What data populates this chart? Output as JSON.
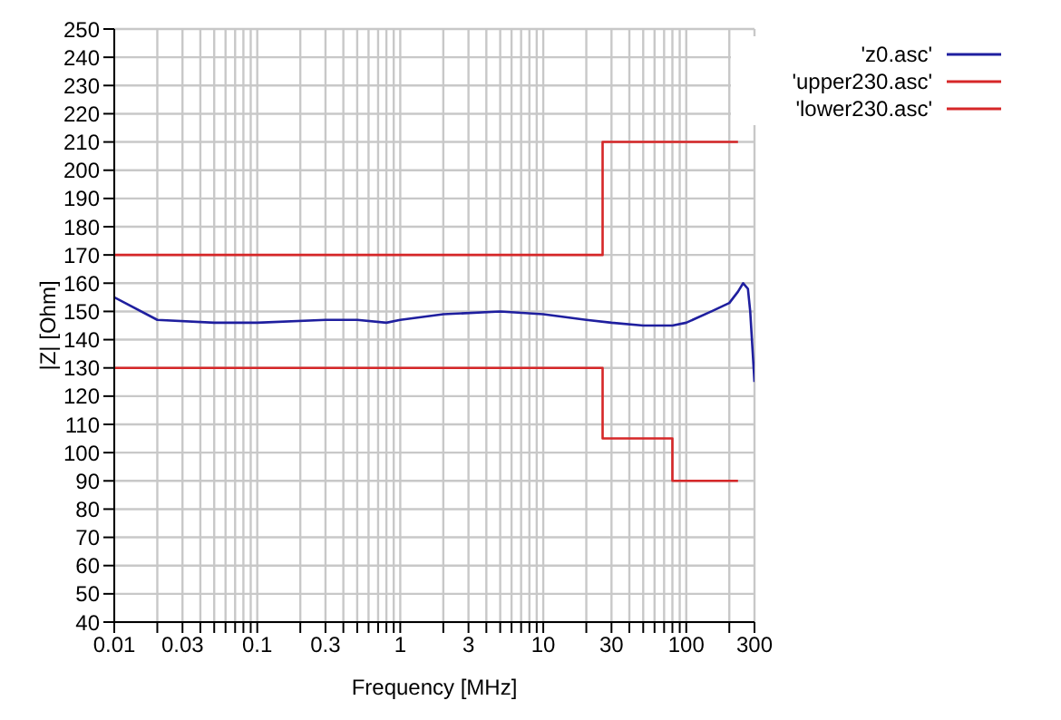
{
  "chart_data": {
    "type": "line",
    "xlabel": "Frequency [MHz]",
    "ylabel": "|Z| [Ohm]",
    "log": "x",
    "xlim": [
      0.01,
      300
    ],
    "xticks": [
      0.01,
      {
        "value": 0.02,
        "label": null
      },
      0.03,
      {
        "value": 0.04,
        "label": null
      },
      {
        "value": 0.05,
        "label": null
      },
      {
        "value": 0.06,
        "label": null
      },
      {
        "value": 0.07,
        "label": null
      },
      {
        "value": 0.08,
        "label": null
      },
      {
        "value": 0.09,
        "label": null
      },
      0.1,
      {
        "value": 0.2,
        "label": null
      },
      0.3,
      {
        "value": 0.4,
        "label": null
      },
      {
        "value": 0.5,
        "label": null
      },
      {
        "value": 0.6,
        "label": null
      },
      {
        "value": 0.7,
        "label": null
      },
      {
        "value": 0.8,
        "label": null
      },
      {
        "value": 0.9,
        "label": null
      },
      1,
      {
        "value": 2,
        "label": null
      },
      3,
      {
        "value": 4,
        "label": null
      },
      {
        "value": 5,
        "label": null
      },
      {
        "value": 6,
        "label": null
      },
      {
        "value": 7,
        "label": null
      },
      {
        "value": 8,
        "label": null
      },
      {
        "value": 9,
        "label": null
      },
      10,
      {
        "value": 20,
        "label": null
      },
      30,
      {
        "value": 40,
        "label": null
      },
      {
        "value": 50,
        "label": null
      },
      {
        "value": 60,
        "label": null
      },
      {
        "value": 70,
        "label": null
      },
      {
        "value": 80,
        "label": null
      },
      {
        "value": 90,
        "label": null
      },
      100,
      {
        "value": 200,
        "label": null
      },
      300
    ],
    "ylim": [
      40,
      250
    ],
    "yticks": [
      40,
      50,
      60,
      70,
      80,
      90,
      100,
      110,
      120,
      130,
      140,
      150,
      160,
      170,
      180,
      190,
      200,
      210,
      220,
      230,
      240,
      250
    ],
    "grid": true,
    "legend": "top right",
    "marker": "none",
    "line_style": "solid",
    "series": [
      {
        "name": "'z0.asc'",
        "color": "#1f1f9f",
        "x": [
          0.01,
          0.02,
          0.05,
          0.1,
          0.3,
          0.5,
          0.8,
          1,
          2,
          5,
          10,
          20,
          30,
          50,
          80,
          100,
          150,
          200,
          230,
          250,
          270,
          280,
          300
        ],
        "values": [
          155,
          147,
          146,
          146,
          147,
          147,
          146,
          147,
          149,
          150,
          149,
          147,
          146,
          145,
          145,
          146,
          150,
          153,
          157,
          160,
          158,
          150,
          125
        ]
      },
      {
        "name": "'upper230.asc'",
        "color": "#d62728",
        "x": [
          0.01,
          26,
          26,
          230
        ],
        "values": [
          170,
          170,
          210,
          210
        ]
      },
      {
        "name": "'lower230.asc'",
        "color": "#d62728",
        "x": [
          0.01,
          26,
          26,
          80,
          80,
          230
        ],
        "values": [
          130,
          130,
          105,
          105,
          90,
          90
        ]
      }
    ]
  }
}
